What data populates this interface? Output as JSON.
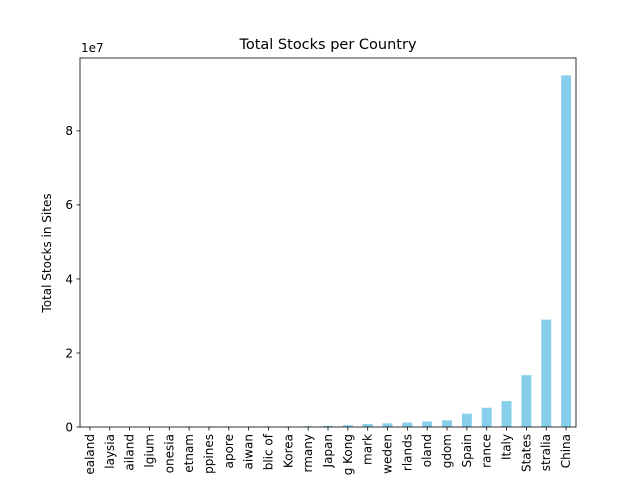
{
  "chart_data": {
    "type": "bar",
    "title": "Total Stocks per Country",
    "xlabel": "",
    "ylabel": "Total Stocks in Sites",
    "y_offset_label": "1e7",
    "bar_color": "#87ceeb",
    "grid": false,
    "legend": "none",
    "ylim": [
      0,
      99700000
    ],
    "yticks": [
      0,
      20000000,
      40000000,
      60000000,
      80000000
    ],
    "ytick_labels": [
      "0",
      "2",
      "4",
      "6",
      "8"
    ],
    "categories": [
      "ealand",
      "laysia",
      "ailand",
      "lgium",
      "onesia",
      "etnam",
      "ppines",
      "apore",
      "aiwan",
      "blic of",
      "Korea",
      "rmany",
      "Japan",
      "g Kong",
      "mark",
      "weden",
      "rlands",
      "oland",
      "gdom",
      "Spain",
      "rance",
      "Italy",
      "States",
      "stralia",
      "China"
    ],
    "values": [
      20000,
      30000,
      40000,
      50000,
      60000,
      70000,
      80000,
      90000,
      100000,
      120000,
      150000,
      200000,
      300000,
      500000,
      800000,
      1000000,
      1200000,
      1500000,
      1800000,
      3600000,
      5200000,
      7000000,
      14000000,
      29000000,
      95000000
    ]
  }
}
